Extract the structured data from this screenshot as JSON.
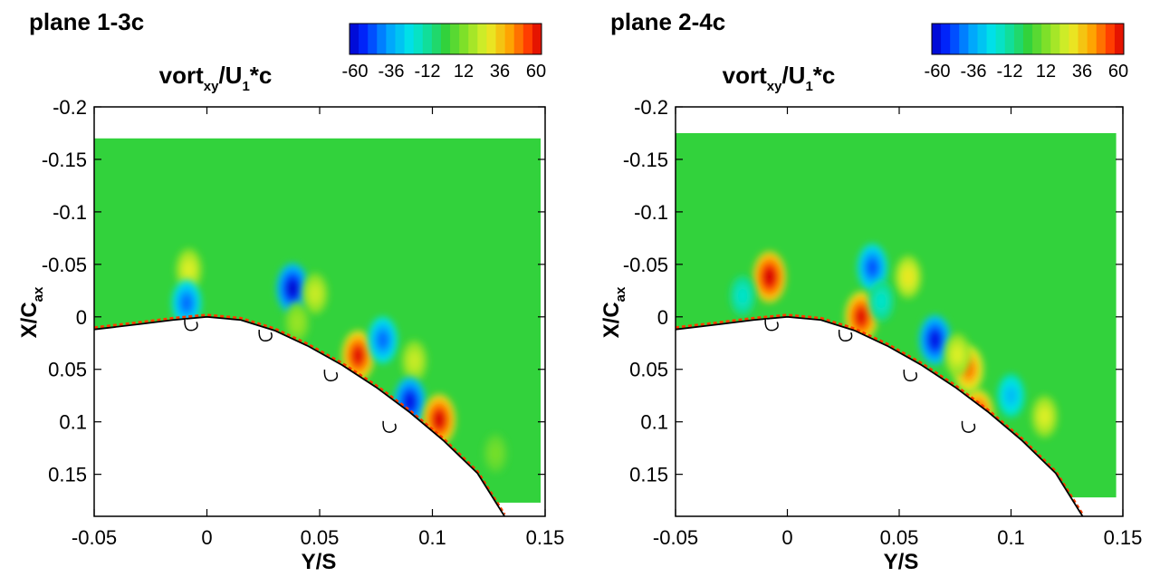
{
  "chart_data": [
    {
      "type": "heatmap",
      "title": "plane 1-3c",
      "colorbar_title": {
        "main": "vort",
        "sub": "xy",
        "rest": "/U",
        "sub2": "1",
        "tail": "*c"
      },
      "colorbar_ticks": [
        "-60",
        "-36",
        "-12",
        "12",
        "36",
        "60"
      ],
      "color_range": [
        -60,
        60
      ],
      "xlabel": "Y/S",
      "ylabel": {
        "main": "X/C",
        "sub": "ax"
      },
      "xlim": [
        -0.05,
        0.15
      ],
      "ylim": [
        -0.2,
        0.19
      ],
      "x_ticks": [
        "-0.05",
        "0",
        "0.05",
        "0.1",
        "0.15"
      ],
      "y_ticks": [
        "-0.2",
        "-0.15",
        "-0.1",
        "-0.05",
        "0",
        "0.05",
        "0.1",
        "0.15"
      ],
      "data_extent": {
        "x": [
          -0.05,
          0.148
        ],
        "y": [
          -0.17,
          0.177
        ]
      },
      "background_value": 0,
      "blade_surface": [
        [
          -0.05,
          0.012
        ],
        [
          -0.03,
          0.007
        ],
        [
          -0.015,
          0.003
        ],
        [
          0,
          0
        ],
        [
          0.015,
          0.003
        ],
        [
          0.03,
          0.013
        ],
        [
          0.045,
          0.028
        ],
        [
          0.06,
          0.046
        ],
        [
          0.075,
          0.067
        ],
        [
          0.09,
          0.091
        ],
        [
          0.105,
          0.118
        ],
        [
          0.12,
          0.149
        ],
        [
          0.132,
          0.19
        ]
      ],
      "holes": [
        [
          -0.007,
          0.004
        ],
        [
          0.026,
          0.014
        ],
        [
          0.055,
          0.052
        ],
        [
          0.081,
          0.101
        ]
      ],
      "vortices": [
        {
          "y": -0.008,
          "x": -0.045,
          "value": 25
        },
        {
          "y": -0.009,
          "x": -0.013,
          "value": -42
        },
        {
          "y": 0.038,
          "x": -0.027,
          "value": -58
        },
        {
          "y": 0.048,
          "x": -0.022,
          "value": 22
        },
        {
          "y": 0.04,
          "x": 0.005,
          "value": 15
        },
        {
          "y": 0.067,
          "x": 0.037,
          "value": 58
        },
        {
          "y": 0.078,
          "x": 0.022,
          "value": -42
        },
        {
          "y": 0.092,
          "x": 0.042,
          "value": 22
        },
        {
          "y": 0.09,
          "x": 0.081,
          "value": -55
        },
        {
          "y": 0.103,
          "x": 0.098,
          "value": 60
        },
        {
          "y": 0.128,
          "x": 0.13,
          "value": 10
        }
      ]
    },
    {
      "type": "heatmap",
      "title": "plane 2-4c",
      "colorbar_title": {
        "main": "vort",
        "sub": "xy",
        "rest": "/U",
        "sub2": "1",
        "tail": "*c"
      },
      "colorbar_ticks": [
        "-60",
        "-36",
        "-12",
        "12",
        "36",
        "60"
      ],
      "color_range": [
        -60,
        60
      ],
      "xlabel": "Y/S",
      "ylabel": {
        "main": "X/C",
        "sub": "ax"
      },
      "xlim": [
        -0.05,
        0.15
      ],
      "ylim": [
        -0.2,
        0.19
      ],
      "x_ticks": [
        "-0.05",
        "0",
        "0.05",
        "0.1",
        "0.15"
      ],
      "y_ticks": [
        "-0.2",
        "-0.15",
        "-0.1",
        "-0.05",
        "0",
        "0.05",
        "0.1",
        "0.15"
      ],
      "data_extent": {
        "x": [
          -0.05,
          0.147
        ],
        "y": [
          -0.175,
          0.172
        ]
      },
      "background_value": 0,
      "blade_surface": [
        [
          -0.05,
          0.012
        ],
        [
          -0.03,
          0.007
        ],
        [
          -0.015,
          0.003
        ],
        [
          0,
          0
        ],
        [
          0.015,
          0.003
        ],
        [
          0.03,
          0.013
        ],
        [
          0.045,
          0.028
        ],
        [
          0.06,
          0.046
        ],
        [
          0.075,
          0.067
        ],
        [
          0.09,
          0.091
        ],
        [
          0.105,
          0.118
        ],
        [
          0.12,
          0.149
        ],
        [
          0.132,
          0.19
        ]
      ],
      "holes": [
        [
          -0.007,
          0.004
        ],
        [
          0.026,
          0.014
        ],
        [
          0.055,
          0.052
        ],
        [
          0.081,
          0.101
        ]
      ],
      "vortices": [
        {
          "y": -0.008,
          "x": -0.038,
          "value": 62
        },
        {
          "y": -0.02,
          "x": -0.02,
          "value": -18
        },
        {
          "y": 0.038,
          "x": -0.047,
          "value": -45
        },
        {
          "y": 0.054,
          "x": -0.038,
          "value": 28
        },
        {
          "y": 0.033,
          "x": 0.0,
          "value": 58
        },
        {
          "y": 0.042,
          "x": -0.015,
          "value": -18
        },
        {
          "y": 0.066,
          "x": 0.022,
          "value": -55
        },
        {
          "y": 0.081,
          "x": 0.05,
          "value": 45
        },
        {
          "y": 0.076,
          "x": 0.036,
          "value": 25
        },
        {
          "y": 0.1,
          "x": 0.075,
          "value": -30
        },
        {
          "y": 0.085,
          "x": 0.093,
          "value": 55
        },
        {
          "y": 0.115,
          "x": 0.095,
          "value": 25
        }
      ]
    }
  ]
}
